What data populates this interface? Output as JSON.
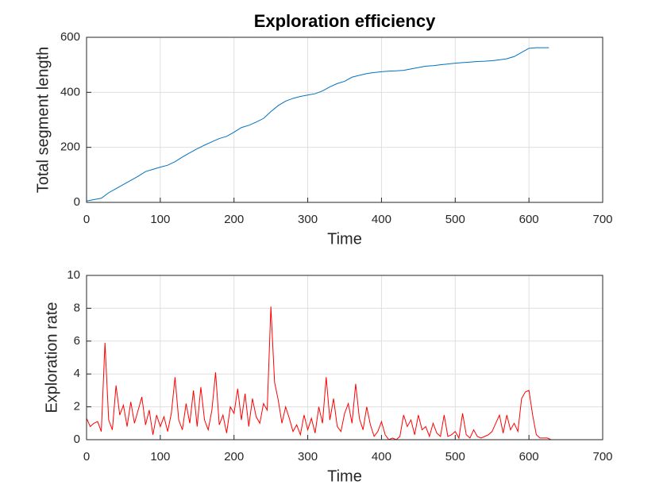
{
  "chart_data": [
    {
      "type": "line",
      "title": "Exploration efficiency",
      "xlabel": "Time",
      "ylabel": "Total segment length",
      "x": [
        0,
        10,
        20,
        30,
        40,
        50,
        60,
        70,
        80,
        90,
        100,
        110,
        120,
        130,
        140,
        150,
        160,
        170,
        180,
        190,
        200,
        210,
        220,
        230,
        240,
        250,
        260,
        270,
        280,
        290,
        300,
        310,
        320,
        330,
        340,
        350,
        360,
        370,
        380,
        390,
        400,
        410,
        420,
        430,
        440,
        450,
        460,
        470,
        480,
        490,
        500,
        510,
        520,
        530,
        540,
        550,
        560,
        570,
        580,
        590,
        600,
        610,
        620,
        627
      ],
      "values": [
        5,
        10,
        15,
        35,
        50,
        65,
        80,
        95,
        112,
        120,
        128,
        135,
        148,
        165,
        180,
        195,
        208,
        220,
        232,
        240,
        255,
        272,
        280,
        292,
        305,
        330,
        352,
        368,
        378,
        385,
        390,
        395,
        405,
        420,
        432,
        440,
        455,
        462,
        468,
        472,
        475,
        477,
        478,
        480,
        485,
        490,
        495,
        497,
        500,
        503,
        506,
        508,
        510,
        512,
        513,
        515,
        518,
        522,
        530,
        545,
        560,
        562,
        562,
        562
      ],
      "color": "#0072bd",
      "xlim": [
        0,
        700
      ],
      "ylim": [
        0,
        600
      ],
      "xticks": [
        0,
        100,
        200,
        300,
        400,
        500,
        600,
        700
      ],
      "yticks": [
        0,
        200,
        400,
        600
      ],
      "grid": true
    },
    {
      "type": "line",
      "xlabel": "Time",
      "ylabel": "Exploration rate",
      "x": [
        0,
        5,
        10,
        15,
        20,
        25,
        30,
        35,
        40,
        45,
        50,
        55,
        60,
        65,
        70,
        75,
        80,
        85,
        90,
        95,
        100,
        105,
        110,
        115,
        120,
        125,
        130,
        135,
        140,
        145,
        150,
        155,
        160,
        165,
        170,
        175,
        180,
        185,
        190,
        195,
        200,
        205,
        210,
        215,
        220,
        225,
        230,
        235,
        240,
        245,
        250,
        255,
        260,
        265,
        270,
        275,
        280,
        285,
        290,
        295,
        300,
        305,
        310,
        315,
        320,
        325,
        330,
        335,
        340,
        345,
        350,
        355,
        360,
        365,
        370,
        375,
        380,
        385,
        390,
        395,
        400,
        405,
        410,
        415,
        420,
        425,
        430,
        435,
        440,
        445,
        450,
        455,
        460,
        465,
        470,
        475,
        480,
        485,
        490,
        495,
        500,
        505,
        510,
        515,
        520,
        525,
        530,
        535,
        540,
        545,
        550,
        555,
        560,
        565,
        570,
        575,
        580,
        585,
        590,
        595,
        600,
        605,
        610,
        615,
        620,
        625,
        630
      ],
      "values": [
        1.3,
        0.8,
        1.0,
        1.1,
        0.5,
        5.9,
        1.2,
        0.6,
        3.3,
        1.5,
        2.1,
        0.8,
        2.3,
        1.0,
        1.8,
        2.6,
        0.9,
        1.8,
        0.3,
        1.5,
        0.8,
        1.4,
        0.5,
        1.6,
        3.8,
        1.2,
        0.6,
        2.2,
        1.0,
        3.0,
        0.8,
        3.2,
        1.2,
        0.6,
        1.8,
        4.1,
        0.9,
        1.5,
        0.4,
        2.0,
        1.6,
        3.1,
        1.2,
        2.8,
        0.8,
        2.5,
        1.4,
        1.0,
        2.2,
        1.8,
        8.1,
        3.5,
        2.4,
        1.0,
        2.0,
        1.3,
        0.5,
        0.9,
        0.3,
        1.5,
        0.6,
        1.3,
        0.4,
        2.0,
        1.0,
        3.8,
        1.2,
        2.5,
        0.8,
        0.5,
        1.6,
        2.2,
        1.0,
        3.4,
        1.3,
        0.6,
        2.0,
        0.9,
        0.2,
        0.5,
        1.1,
        0.3,
        0,
        0.1,
        0,
        0.2,
        1.5,
        0.8,
        1.2,
        0.3,
        1.5,
        0.6,
        0.8,
        0.2,
        1.0,
        0.4,
        0.2,
        1.5,
        0.2,
        0.3,
        0.5,
        0.1,
        1.6,
        0.3,
        0.1,
        0.6,
        0.2,
        0.1,
        0.2,
        0.3,
        0.5,
        1.0,
        1.5,
        0.4,
        1.5,
        0.6,
        1.0,
        0.5,
        2.5,
        2.9,
        3.0,
        1.5,
        0.3,
        0.1,
        0.1,
        0.1,
        0
      ],
      "color": "#ff0000",
      "xlim": [
        0,
        700
      ],
      "ylim": [
        0,
        10
      ],
      "xticks": [
        0,
        100,
        200,
        300,
        400,
        500,
        600,
        700
      ],
      "yticks": [
        0,
        2,
        4,
        6,
        8,
        10
      ],
      "grid": true
    }
  ]
}
